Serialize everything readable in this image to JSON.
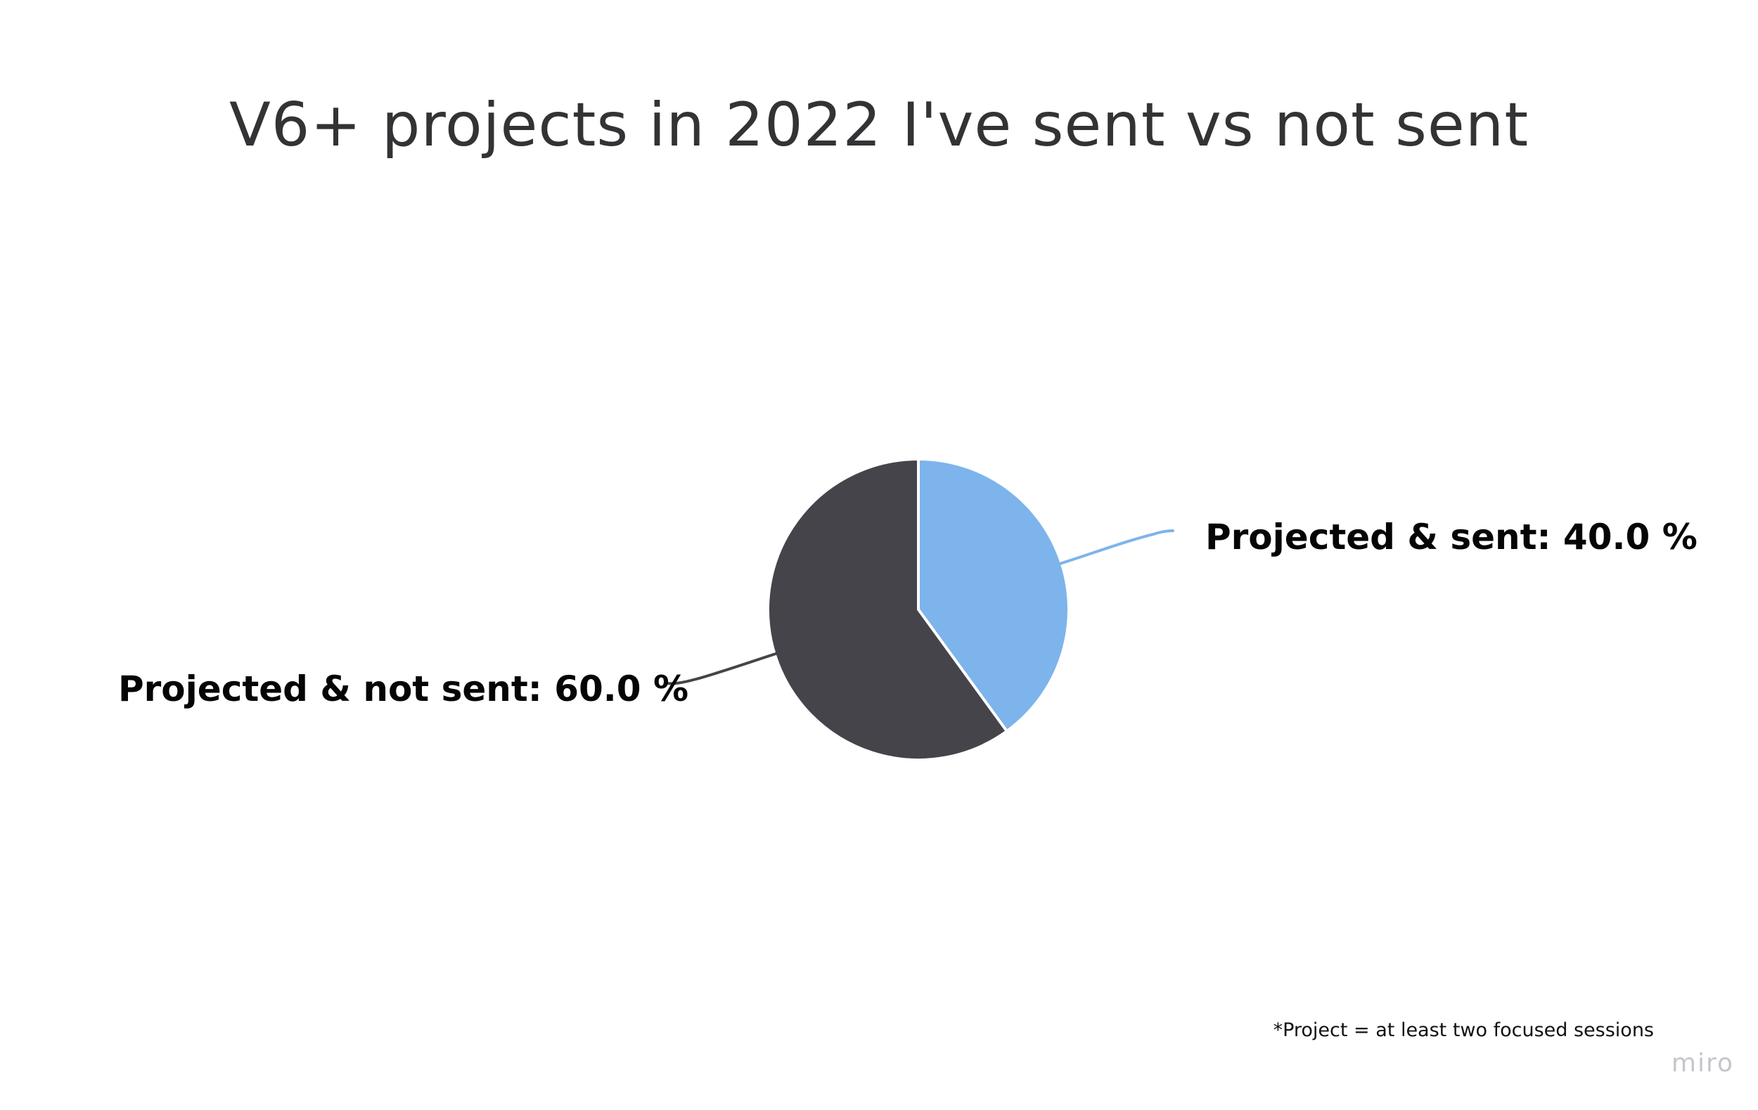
{
  "chart_data": {
    "type": "pie",
    "title": "V6+ projects in 2022 I've sent vs not sent",
    "slices": [
      {
        "label": "Projected & sent: 40.0 %",
        "value": 40.0,
        "color": "#7db4eb"
      },
      {
        "label": "Projected & not sent: 60.0 %",
        "value": 60.0,
        "color": "#45444a"
      }
    ],
    "start_angle": "12 o'clock",
    "direction": "clockwise",
    "slice_border_color": "#ffffff"
  },
  "footnote": "*Project = at least two focused sessions",
  "watermark": "miro"
}
